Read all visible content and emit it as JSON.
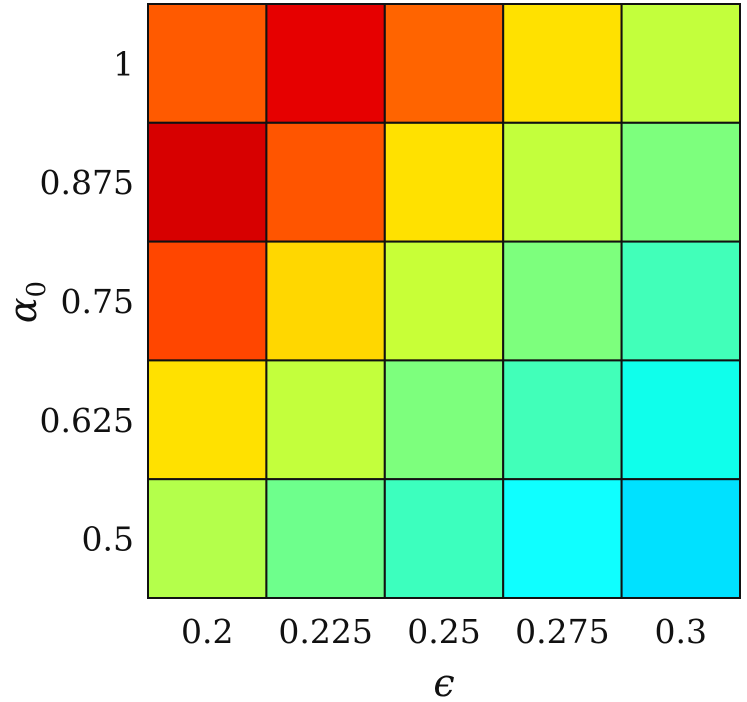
{
  "chart_data": {
    "type": "heatmap",
    "title": "",
    "xlabel": "ϵ",
    "ylabel": "α",
    "ylabel_subscript": "0",
    "x_categories": [
      "0.2",
      "0.225",
      "0.25",
      "0.275",
      "0.3"
    ],
    "y_categories": [
      "1",
      "0.875",
      "0.75",
      "0.625",
      "0.5"
    ],
    "cell_colors": [
      [
        "#ff5a00",
        "#e60000",
        "#ff6400",
        "#ffe100",
        "#c3ff3c"
      ],
      [
        "#d70000",
        "#ff5500",
        "#ffe100",
        "#c3ff3c",
        "#7dff7d"
      ],
      [
        "#ff4600",
        "#ffd700",
        "#c8ff37",
        "#7dff7d",
        "#41ffb9"
      ],
      [
        "#ffe100",
        "#c3ff3c",
        "#7dff7d",
        "#41ffb9",
        "#0fffeb"
      ],
      [
        "#b4ff4b",
        "#6eff8c",
        "#3cffbe",
        "#0fffff",
        "#00e1ff"
      ]
    ],
    "grid": true,
    "colorbar": false
  }
}
